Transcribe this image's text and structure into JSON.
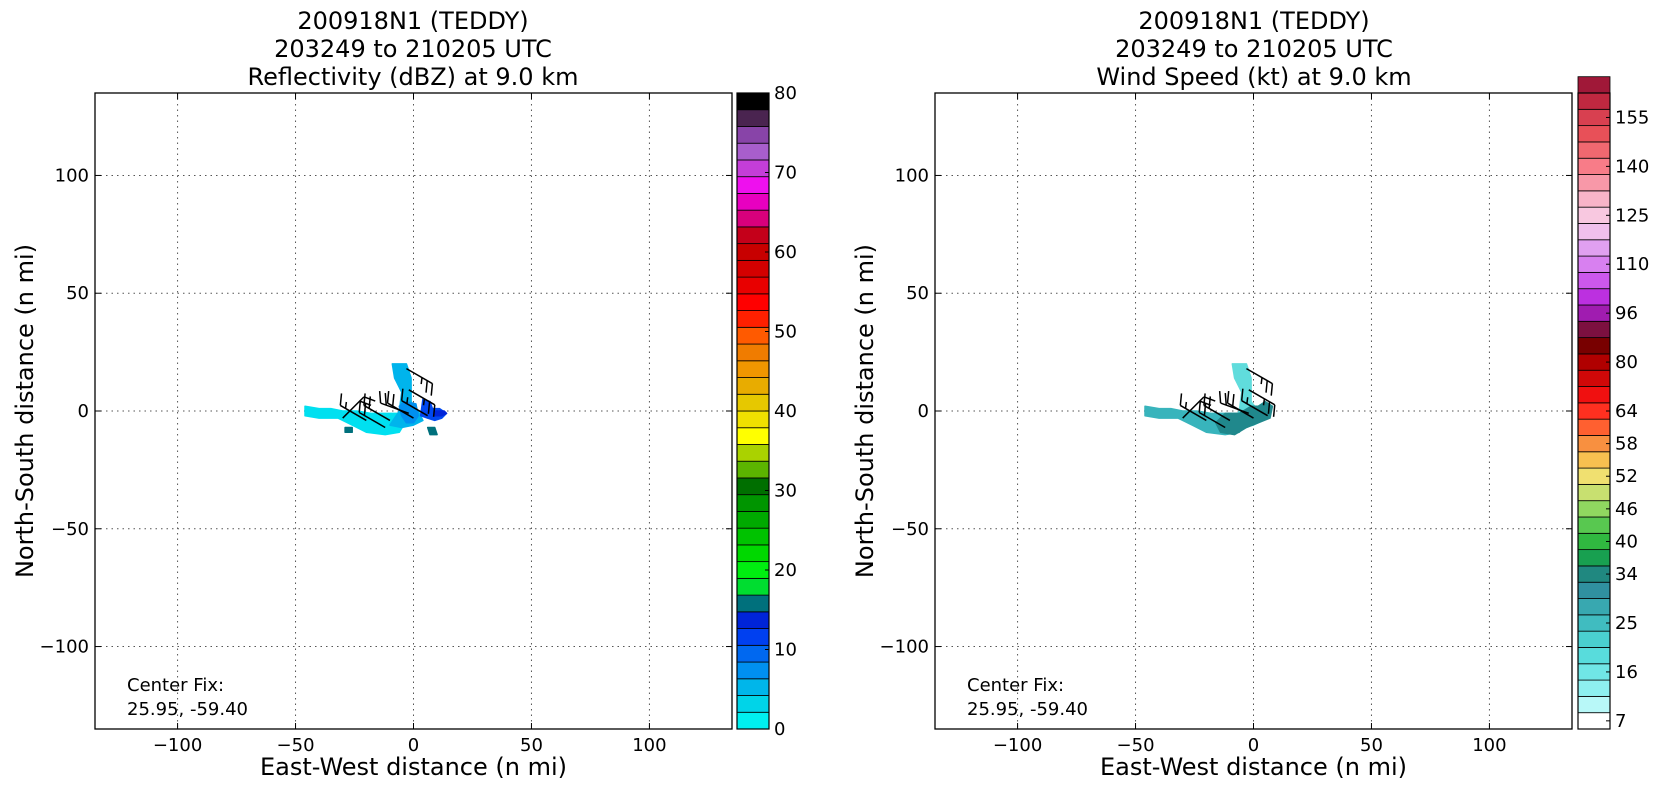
{
  "chart_data": [
    {
      "type": "heatmap",
      "title_lines": [
        "200918N1 (TEDDY)",
        "203249 to 210205 UTC",
        "Reflectivity (dBZ) at 9.0 km"
      ],
      "xlabel": "East-West distance (n mi)",
      "ylabel": "North-South distance (n mi)",
      "xlim": [
        -135,
        135
      ],
      "ylim": [
        -135,
        135
      ],
      "x_ticks": [
        -100,
        -50,
        0,
        50,
        100
      ],
      "y_ticks": [
        -100,
        -50,
        0,
        50,
        100
      ],
      "x_tick_labels": [
        "−100",
        "−50",
        "0",
        "50",
        "100"
      ],
      "y_tick_labels": [
        "−100",
        "−50",
        "0",
        "50",
        "100"
      ],
      "grid": true,
      "annotation_lines": [
        "Center Fix:",
        "25.95, -59.40"
      ],
      "colorbar": {
        "min": 0,
        "max": 80,
        "tick_values": [
          0,
          10,
          20,
          30,
          40,
          50,
          60,
          70,
          80
        ],
        "tick_labels": [
          "0",
          "10",
          "20",
          "30",
          "40",
          "50",
          "60",
          "70",
          "80"
        ],
        "colors": [
          "#00f0f0",
          "#00d4e8",
          "#00b6ea",
          "#0090f0",
          "#0068f0",
          "#0040f0",
          "#0024d8",
          "#00707c",
          "#00dd30",
          "#00ee10",
          "#00d800",
          "#00c200",
          "#00aa00",
          "#009500",
          "#006f00",
          "#5cb400",
          "#aad200",
          "#ffff00",
          "#f0e000",
          "#e6c800",
          "#e8ac00",
          "#f09600",
          "#f07c00",
          "#ff5a00",
          "#ff2000",
          "#ff0000",
          "#e80000",
          "#d40000",
          "#c80000",
          "#c4001a",
          "#d8007c",
          "#e800c0",
          "#ee10ee",
          "#c43ed8",
          "#a85ecc",
          "#8844a8",
          "#4a2450",
          "#000000"
        ]
      },
      "data_regions": [
        {
          "color": "#00e0f0",
          "points": [
            [
              -46,
              2
            ],
            [
              -40,
              1
            ],
            [
              -35,
              1
            ],
            [
              -30,
              0
            ],
            [
              -24,
              0
            ],
            [
              -18,
              -1
            ],
            [
              -12,
              -1
            ],
            [
              -6,
              -1
            ],
            [
              -3,
              -4
            ],
            [
              -6,
              -9
            ],
            [
              -12,
              -10
            ],
            [
              -20,
              -9
            ],
            [
              -26,
              -6
            ],
            [
              -32,
              -3
            ],
            [
              -40,
              -3
            ],
            [
              -46,
              -2
            ]
          ]
        },
        {
          "color": "#00b4ec",
          "points": [
            [
              -9,
              20
            ],
            [
              -3,
              20
            ],
            [
              -1,
              14
            ],
            [
              -1,
              4
            ],
            [
              2,
              0
            ],
            [
              4,
              -4
            ],
            [
              0,
              -6
            ],
            [
              -5,
              -7
            ],
            [
              -10,
              -6
            ],
            [
              -6,
              0
            ],
            [
              -5,
              8
            ],
            [
              -8,
              14
            ]
          ]
        },
        {
          "color": "#0090f0",
          "points": [
            [
              -4,
              4
            ],
            [
              1,
              3
            ],
            [
              2,
              -2
            ],
            [
              0,
              -5
            ],
            [
              -3,
              -5
            ],
            [
              -5,
              -2
            ],
            [
              -6,
              2
            ]
          ]
        },
        {
          "color": "#0048f0",
          "points": [
            [
              4,
              5
            ],
            [
              7,
              4
            ],
            [
              8,
              1
            ],
            [
              11,
              1
            ],
            [
              14,
              -1
            ],
            [
              12,
              -3
            ],
            [
              9,
              -4
            ],
            [
              6,
              -3
            ],
            [
              3,
              -2
            ]
          ]
        },
        {
          "color": "#0024d8",
          "points": [
            [
              9,
              0
            ],
            [
              13,
              0
            ],
            [
              14,
              -1
            ],
            [
              12,
              -2
            ],
            [
              9,
              -2
            ]
          ]
        },
        {
          "color": "#00707c",
          "points": [
            [
              6,
              -7
            ],
            [
              9,
              -7
            ],
            [
              10,
              -10
            ],
            [
              7,
              -10
            ]
          ]
        },
        {
          "color": "#00707c",
          "points": [
            [
              -29,
              -7
            ],
            [
              -26,
              -7
            ],
            [
              -26,
              -9
            ],
            [
              -29,
              -9
            ]
          ]
        }
      ],
      "wind_barbs": [
        {
          "x": -3,
          "y": 18,
          "dir": 120,
          "barbs": 2.5
        },
        {
          "x": -2,
          "y": 9,
          "dir": 120,
          "barbs": 2.5
        },
        {
          "x": -12,
          "y": -7,
          "dir": 300,
          "barbs": 2
        },
        {
          "x": -2,
          "y": -1,
          "dir": 290,
          "barbs": 2
        },
        {
          "x": 0,
          "y": -3,
          "dir": 300,
          "barbs": 2
        },
        {
          "x": -30,
          "y": -3,
          "dir": 45,
          "barbs": 2
        },
        {
          "x": -20,
          "y": -4,
          "dir": 300,
          "barbs": 1.5
        },
        {
          "x": -10,
          "y": -4,
          "dir": 300,
          "barbs": 2
        },
        {
          "x": 6,
          "y": -2,
          "dir": 300,
          "barbs": 1.5
        }
      ]
    },
    {
      "type": "heatmap",
      "title_lines": [
        "200918N1 (TEDDY)",
        "203249 to 210205 UTC",
        "Wind Speed (kt) at 9.0 km"
      ],
      "xlabel": "East-West distance (n mi)",
      "ylabel": "North-South distance (n mi)",
      "xlim": [
        -135,
        135
      ],
      "ylim": [
        -135,
        135
      ],
      "x_ticks": [
        -100,
        -50,
        0,
        50,
        100
      ],
      "y_ticks": [
        -100,
        -50,
        0,
        50,
        100
      ],
      "x_tick_labels": [
        "−100",
        "−50",
        "0",
        "50",
        "100"
      ],
      "y_tick_labels": [
        "−100",
        "−50",
        "0",
        "50",
        "100"
      ],
      "grid": true,
      "annotation_lines": [
        "Center Fix:",
        "25.95, -59.40"
      ],
      "colorbar": {
        "min": 7,
        "max": 160,
        "tick_values": [
          7,
          16,
          25,
          34,
          40,
          46,
          52,
          58,
          64,
          80,
          96,
          110,
          125,
          140,
          155
        ],
        "tick_labels": [
          "7",
          "16",
          "25",
          "34",
          "40",
          "46",
          "52",
          "58",
          "64",
          "80",
          "96",
          "110",
          "125",
          "140",
          "155"
        ],
        "tick_cells": [
          0,
          3,
          6,
          9,
          11,
          13,
          15,
          17,
          19,
          22,
          25,
          28,
          31,
          34,
          37
        ],
        "cells": 39,
        "colors": [
          "#ffffff",
          "#b8f8f8",
          "#8ef0f0",
          "#70e6e6",
          "#58dcdc",
          "#4ad0d0",
          "#40bcc0",
          "#38a8b0",
          "#3090a0",
          "#208880",
          "#18a050",
          "#30b840",
          "#58c850",
          "#90d860",
          "#c8e070",
          "#f0e070",
          "#f8c050",
          "#f89040",
          "#ff6030",
          "#ff3020",
          "#f01010",
          "#d00808",
          "#b00000",
          "#780000",
          "#7c1040",
          "#a01cb0",
          "#bc30e0",
          "#cc58ec",
          "#d880f0",
          "#e0a0f0",
          "#f0c0ec",
          "#f8c8e0",
          "#f8b4c8",
          "#f898a8",
          "#f87c88",
          "#f06870",
          "#e85058",
          "#d84050",
          "#c02840",
          "#a01838"
        ]
      },
      "data_regions": [
        {
          "color": "#60dcdc",
          "points": [
            [
              -9,
              20
            ],
            [
              -3,
              20
            ],
            [
              -1,
              14
            ],
            [
              -1,
              4
            ],
            [
              2,
              0
            ],
            [
              4,
              -4
            ],
            [
              0,
              -6
            ],
            [
              -5,
              -7
            ],
            [
              -10,
              -6
            ],
            [
              -6,
              0
            ],
            [
              -5,
              8
            ],
            [
              -8,
              14
            ]
          ]
        },
        {
          "color": "#38b4bc",
          "points": [
            [
              -46,
              2
            ],
            [
              -40,
              1
            ],
            [
              -35,
              1
            ],
            [
              -30,
              0
            ],
            [
              -24,
              0
            ],
            [
              -18,
              -1
            ],
            [
              -12,
              -1
            ],
            [
              -6,
              -1
            ],
            [
              -3,
              -4
            ],
            [
              -6,
              -9
            ],
            [
              -12,
              -10
            ],
            [
              -20,
              -9
            ],
            [
              -26,
              -6
            ],
            [
              -32,
              -3
            ],
            [
              -40,
              -3
            ],
            [
              -46,
              -2
            ]
          ]
        },
        {
          "color": "#20888c",
          "points": [
            [
              -12,
              -1
            ],
            [
              -6,
              -1
            ],
            [
              -1,
              2
            ],
            [
              2,
              2
            ],
            [
              5,
              4
            ],
            [
              8,
              2
            ],
            [
              7,
              -3
            ],
            [
              2,
              -5
            ],
            [
              -3,
              -7
            ],
            [
              -8,
              -10
            ],
            [
              -14,
              -9
            ],
            [
              -16,
              -5
            ]
          ]
        }
      ],
      "wind_barbs": [
        {
          "x": -3,
          "y": 18,
          "dir": 120,
          "barbs": 2.5
        },
        {
          "x": -2,
          "y": 9,
          "dir": 120,
          "barbs": 2.5
        },
        {
          "x": -12,
          "y": -7,
          "dir": 300,
          "barbs": 2
        },
        {
          "x": -2,
          "y": -1,
          "dir": 290,
          "barbs": 2
        },
        {
          "x": 0,
          "y": -3,
          "dir": 300,
          "barbs": 2
        },
        {
          "x": -30,
          "y": -3,
          "dir": 45,
          "barbs": 2
        },
        {
          "x": -20,
          "y": -4,
          "dir": 300,
          "barbs": 1.5
        },
        {
          "x": -10,
          "y": -4,
          "dir": 300,
          "barbs": 2
        },
        {
          "x": 6,
          "y": -2,
          "dir": 300,
          "barbs": 1.5
        }
      ]
    }
  ]
}
